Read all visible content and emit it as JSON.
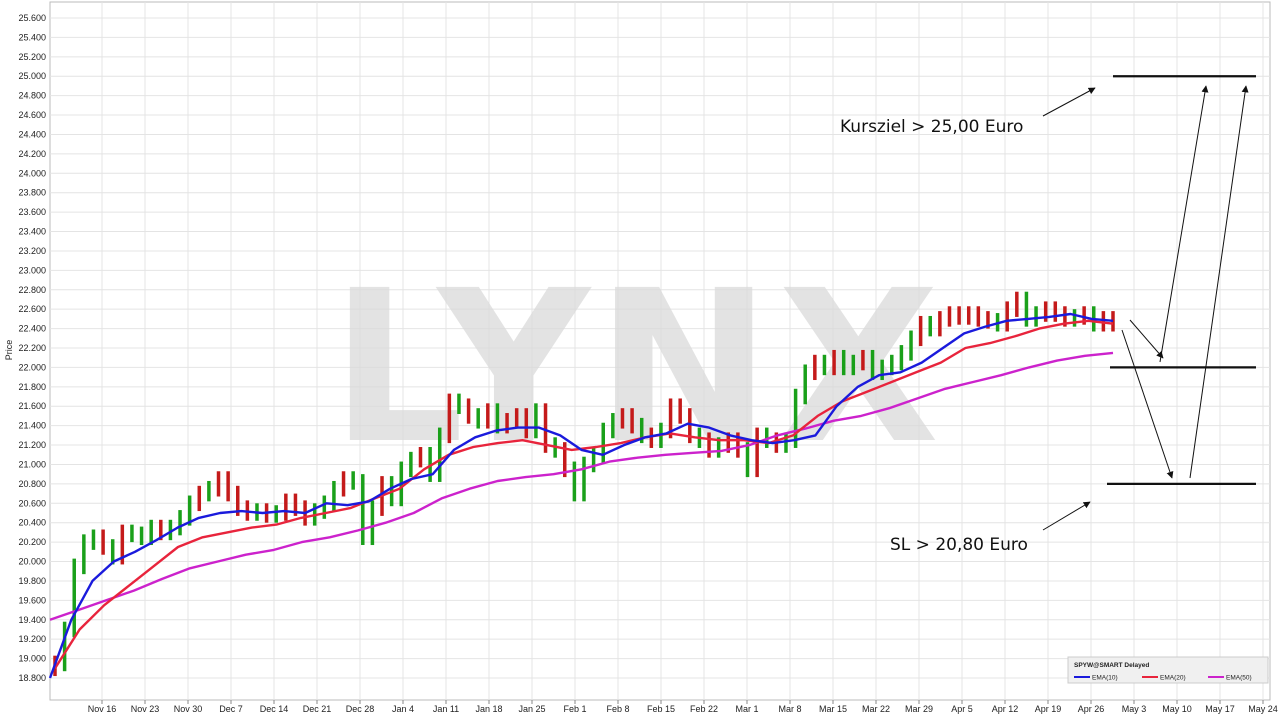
{
  "chart_data": {
    "type": "ohlc",
    "ylabel": "Price",
    "ylim": [
      18.8,
      25.6
    ],
    "yticks": [
      "18.800",
      "19.000",
      "19.200",
      "19.400",
      "19.600",
      "19.800",
      "20.000",
      "20.200",
      "20.400",
      "20.600",
      "20.800",
      "21.000",
      "21.200",
      "21.400",
      "21.600",
      "21.800",
      "22.000",
      "22.200",
      "22.400",
      "22.600",
      "22.800",
      "23.000",
      "23.200",
      "23.400",
      "23.600",
      "23.800",
      "24.000",
      "24.200",
      "24.400",
      "24.600",
      "24.800",
      "25.000",
      "25.200",
      "25.400",
      "25.600"
    ],
    "xticks": [
      "Nov 16",
      "Nov 23",
      "Nov 30",
      "Dec 7",
      "Dec 14",
      "Dec 21",
      "Dec 28",
      "Jan 4",
      "Jan 11",
      "Jan 18",
      "Jan 25",
      "Feb 1",
      "Feb 8",
      "Feb 15",
      "Feb 22",
      "Mar 1",
      "Mar 8",
      "Mar 15",
      "Mar 22",
      "Mar 29",
      "Apr 5",
      "Apr 12",
      "Apr 19",
      "Apr 26",
      "May 3",
      "May 10",
      "May 17",
      "May 24"
    ],
    "grid": true,
    "watermark": "LYNX",
    "legend": {
      "position": "bottom-right",
      "title": "SPYW@SMART Delayed",
      "entries": [
        {
          "label": "EMA(10)",
          "color": "#1a1adc"
        },
        {
          "label": "EMA(20)",
          "color": "#e8243c"
        },
        {
          "label": "EMA(50)",
          "color": "#cc22cc"
        }
      ]
    },
    "bars_close": [
      18.95,
      19.3,
      19.95,
      20.2,
      20.25,
      20.15,
      20.05,
      20.3,
      20.28,
      20.25,
      20.35,
      20.3,
      20.35,
      20.45,
      20.6,
      20.7,
      20.75,
      20.85,
      20.7,
      20.55,
      20.5,
      20.52,
      20.48,
      20.5,
      20.62,
      20.55,
      20.45,
      20.52,
      20.6,
      20.75,
      20.85,
      20.82,
      20.25,
      20.55,
      20.8,
      20.65,
      20.95,
      21.05,
      21.1,
      20.9,
      21.3,
      21.65,
      21.6,
      21.5,
      21.45,
      21.55,
      21.4,
      21.45,
      21.5,
      21.35,
      21.55,
      21.2,
      21.15,
      20.95,
      20.7,
      21.0,
      21.1,
      21.35,
      21.45,
      21.5,
      21.4,
      21.3,
      21.25,
      21.35,
      21.6,
      21.5,
      21.3,
      21.25,
      21.15,
      21.2,
      21.25,
      21.15,
      20.95,
      21.3,
      21.25,
      21.2,
      21.25,
      21.7,
      21.95,
      22.05,
      22.0,
      22.1,
      22.0,
      22.05,
      22.1,
      21.95,
      22.0,
      22.05,
      22.15,
      22.3,
      22.45,
      22.4,
      22.5,
      22.55,
      22.52,
      22.55,
      22.5,
      22.48,
      22.45,
      22.6,
      22.7,
      22.5,
      22.55,
      22.6,
      22.55,
      22.5,
      22.52,
      22.55,
      22.45,
      22.5,
      22.45
    ],
    "bars_up": [
      0,
      1,
      1,
      1,
      1,
      0,
      1,
      0,
      1,
      1,
      1,
      0,
      1,
      1,
      1,
      0,
      1,
      0,
      0,
      0,
      0,
      1,
      0,
      1,
      0,
      0,
      0,
      1,
      1,
      1,
      0,
      1,
      1,
      1,
      0,
      1,
      1,
      1,
      0,
      1,
      1,
      0,
      1,
      0,
      1,
      0,
      1,
      0,
      0,
      0,
      1,
      0,
      1,
      0,
      1,
      1,
      1,
      1,
      1,
      0,
      0,
      1,
      0,
      1,
      0,
      0,
      0,
      1,
      0,
      1,
      0,
      0,
      1,
      0,
      1,
      0,
      1,
      1,
      1,
      0,
      1,
      0,
      1,
      1,
      0,
      1,
      1,
      1,
      1,
      1,
      0,
      1,
      0,
      0,
      0,
      0,
      0,
      0,
      1,
      0,
      0,
      1,
      1,
      0,
      0,
      0,
      1,
      0,
      1,
      0,
      0
    ],
    "ema10": [
      18.8,
      19.4,
      19.8,
      20.0,
      20.1,
      20.22,
      20.35,
      20.45,
      20.5,
      20.52,
      20.5,
      20.52,
      20.5,
      20.6,
      20.58,
      20.62,
      20.75,
      20.85,
      20.9,
      21.15,
      21.28,
      21.35,
      21.38,
      21.38,
      21.3,
      21.15,
      21.1,
      21.2,
      21.28,
      21.32,
      21.42,
      21.38,
      21.3,
      21.25,
      21.22,
      21.25,
      21.3,
      21.6,
      21.8,
      21.92,
      21.95,
      22.05,
      22.2,
      22.35,
      22.42,
      22.48,
      22.5,
      22.52,
      22.55,
      22.5,
      22.48
    ],
    "ema20": [
      18.9,
      19.3,
      19.55,
      19.75,
      19.95,
      20.15,
      20.25,
      20.3,
      20.35,
      20.38,
      20.45,
      20.5,
      20.55,
      20.65,
      20.75,
      20.95,
      21.1,
      21.18,
      21.22,
      21.25,
      21.2,
      21.15,
      21.18,
      21.22,
      21.28,
      21.32,
      21.28,
      21.25,
      21.25,
      21.22,
      21.3,
      21.5,
      21.65,
      21.75,
      21.85,
      21.95,
      22.05,
      22.2,
      22.25,
      22.32,
      22.4,
      22.45,
      22.48,
      22.45
    ],
    "ema50": [
      19.4,
      19.5,
      19.6,
      19.7,
      19.82,
      19.93,
      20.0,
      20.07,
      20.12,
      20.2,
      20.25,
      20.32,
      20.4,
      20.5,
      20.65,
      20.75,
      20.83,
      20.87,
      20.9,
      20.95,
      21.03,
      21.07,
      21.1,
      21.12,
      21.14,
      21.2,
      21.3,
      21.37,
      21.45,
      21.5,
      21.58,
      21.68,
      21.78,
      21.85,
      21.92,
      22.0,
      22.07,
      22.12,
      22.15
    ],
    "annotations": [
      {
        "text": "Kursziel > 25,00 Euro",
        "level": 25.0
      },
      {
        "text": "SL > 20,80 Euro",
        "level": 20.8
      },
      {
        "text": "",
        "level": 22.0
      }
    ]
  }
}
